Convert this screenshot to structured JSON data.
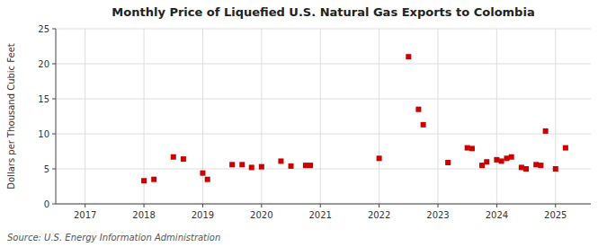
{
  "chart_data": {
    "type": "scatter",
    "title": "Monthly Price of Liquefied U.S. Natural Gas Exports to Colombia",
    "ylabel": "Dollars per Thousand Cubic Feet",
    "source": "Source: U.S. Energy Information Administration",
    "color": "#cc0000",
    "marker": "square",
    "grid": true,
    "x": [
      2018.0,
      2018.17,
      2018.5,
      2018.67,
      2019.0,
      2019.08,
      2019.5,
      2019.67,
      2019.83,
      2020.0,
      2020.33,
      2020.5,
      2020.75,
      2020.83,
      2022.0,
      2022.5,
      2022.67,
      2022.75,
      2023.17,
      2023.5,
      2023.58,
      2023.75,
      2023.83,
      2024.0,
      2024.08,
      2024.17,
      2024.25,
      2024.42,
      2024.5,
      2024.67,
      2024.75,
      2024.83,
      2025.0,
      2025.17
    ],
    "values": [
      3.3,
      3.5,
      6.7,
      6.4,
      4.4,
      3.5,
      5.6,
      5.6,
      5.2,
      5.3,
      6.1,
      5.4,
      5.5,
      5.5,
      6.5,
      21.0,
      13.5,
      11.3,
      5.9,
      8.0,
      7.9,
      5.5,
      6.0,
      6.3,
      6.1,
      6.5,
      6.7,
      5.2,
      5.0,
      5.6,
      5.5,
      10.4,
      5.0,
      8.0
    ],
    "xlim": [
      2016.5,
      2025.6
    ],
    "xticks": [
      2017,
      2018,
      2019,
      2020,
      2021,
      2022,
      2023,
      2024,
      2025
    ],
    "ylim": [
      0,
      25
    ],
    "yticks": [
      0,
      5,
      10,
      15,
      20,
      25
    ]
  }
}
